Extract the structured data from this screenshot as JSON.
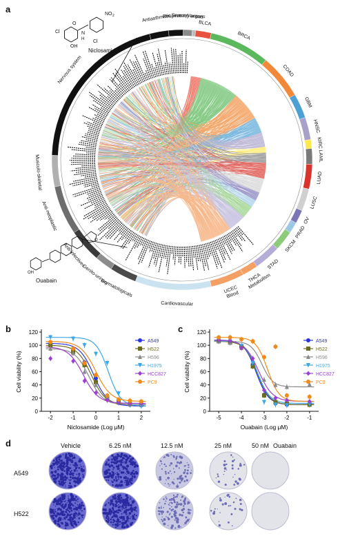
{
  "panels": {
    "a": "a",
    "b": "b",
    "c": "c",
    "d": "d"
  },
  "circos": {
    "drug_categories": [
      {
        "name": "Antiasthmatic",
        "color": "#111111",
        "start": 345.5,
        "end": 354
      },
      {
        "name": "Respiratory",
        "color": "#111111",
        "start": 354,
        "end": 360.5
      },
      {
        "name": "Sensory organs",
        "color": "#8a8a8a",
        "start": 360.5,
        "end": 364.5
      },
      {
        "name": "Various",
        "color": "#bdbdbd",
        "start": 364.5,
        "end": 366
      },
      {
        "name": "Nervous system",
        "color": "#111111",
        "start": 272,
        "end": 345.5
      },
      {
        "name": "Musculo-skeletal",
        "color": "#b0b0b0",
        "start": 258,
        "end": 272
      },
      {
        "name": "Anti-neoplastic",
        "color": "#6d6d6d",
        "start": 236,
        "end": 258
      },
      {
        "name": "Anti-infectives",
        "color": "#3a3a3a",
        "start": 221,
        "end": 236
      },
      {
        "name": "Genito-urinary",
        "color": "#8c8c8c",
        "start": 213,
        "end": 221
      },
      {
        "name": "Dermatologicals",
        "color": "#4a4a4a",
        "start": 201,
        "end": 213
      },
      {
        "name": "Cardiovascular",
        "color": "#cbe3f0",
        "start": 163,
        "end": 201
      },
      {
        "name": "Blood",
        "color": "#5aa0cf",
        "start": 156,
        "end": 163
      },
      {
        "name": "Metabolism",
        "color": "#9cc8e6",
        "start": 139,
        "end": 156
      }
    ],
    "cancer_types": [
      {
        "name": "BLCA",
        "color": "#e8533f",
        "start": 6,
        "end": 13
      },
      {
        "name": "BRCA",
        "color": "#5cb85c",
        "start": 13,
        "end": 40
      },
      {
        "name": "COAD",
        "color": "#f08a3a",
        "start": 40,
        "end": 60
      },
      {
        "name": "GBM",
        "color": "#4da0d4",
        "start": 60,
        "end": 71
      },
      {
        "name": "HNSC",
        "color": "#a9a1c9",
        "start": 71,
        "end": 81
      },
      {
        "name": "KIRC",
        "color": "#ffe94d",
        "start": 81,
        "end": 85
      },
      {
        "name": "LAML",
        "color": "#7a7a7a",
        "start": 85,
        "end": 92
      },
      {
        "name": "LUAD",
        "color": "#d9342b",
        "start": 92,
        "end": 103
      },
      {
        "name": "LUSC",
        "color": "#d0d0d0",
        "start": 103,
        "end": 113
      },
      {
        "name": "OV",
        "color": "#7b75b6",
        "start": 113,
        "end": 119
      },
      {
        "name": "PRAD",
        "color": "#9cc8e6",
        "start": 119,
        "end": 124
      },
      {
        "name": "SKCM",
        "color": "#8dca7a",
        "start": 124,
        "end": 133
      },
      {
        "name": "STAD",
        "color": "#b4aed6",
        "start": 133,
        "end": 145
      },
      {
        "name": "THCA",
        "color": "#f4a064",
        "start": 145,
        "end": 152
      },
      {
        "name": "UCEC",
        "color": "#f4a064",
        "start": 152,
        "end": 167
      }
    ],
    "drug_names": {
      "niclosamide": "Niclosamide",
      "ouabain": "Ouabain"
    },
    "structure_atoms": {
      "cl": "Cl",
      "oh": "OH",
      "no2": "NO",
      "no2_sub": "2",
      "nh": "N",
      "h": "H",
      "o": "O"
    }
  },
  "chart_data": [
    {
      "type": "line",
      "title": "",
      "xlabel": "Niclosamide (Log μM)",
      "ylabel": "Cell viability (%)",
      "xlim": [
        -2.4,
        2.4
      ],
      "ylim": [
        0,
        120
      ],
      "xticks": [
        -2,
        -1,
        0,
        1,
        2
      ],
      "yticks": [
        0,
        20,
        40,
        60,
        80,
        100,
        120
      ],
      "legend": "right",
      "x": [
        -2,
        -1,
        -0.5,
        0,
        0.5,
        1,
        1.5,
        2
      ],
      "series": [
        {
          "name": "A549",
          "color": "#2a35d9",
          "marker": "circle",
          "ic50": -0.1,
          "top": 103,
          "bottom": 8,
          "hill": 1.4,
          "values": [
            101,
            93,
            74,
            50,
            20,
            13,
            10,
            9
          ]
        },
        {
          "name": "H522",
          "color": "#6b6b1f",
          "marker": "square",
          "ic50": -0.2,
          "top": 100,
          "bottom": 10,
          "hill": 1.4,
          "values": [
            100,
            90,
            70,
            44,
            20,
            14,
            11,
            10
          ]
        },
        {
          "name": "H596",
          "color": "#8a8a8a",
          "marker": "triangle",
          "ic50": -0.3,
          "top": 95,
          "bottom": 10,
          "hill": 1.4,
          "values": [
            95,
            88,
            60,
            40,
            22,
            15,
            12,
            11
          ]
        },
        {
          "name": "H1975",
          "color": "#3ba7e6",
          "marker": "triangle-down",
          "ic50": 0.55,
          "top": 112,
          "bottom": 8,
          "hill": 1.6,
          "values": [
            112,
            110,
            100,
            87,
            73,
            27,
            10,
            8
          ]
        },
        {
          "name": "HCC827",
          "color": "#9c3fcf",
          "marker": "diamond",
          "ic50": -0.55,
          "top": 98,
          "bottom": 12,
          "hill": 1.3,
          "values": [
            80,
            76,
            46,
            28,
            17,
            14,
            12,
            12
          ]
        },
        {
          "name": "PC9",
          "color": "#f08a1a",
          "marker": "circle",
          "ic50": 0.0,
          "top": 106,
          "bottom": 15,
          "hill": 1.3,
          "values": [
            105,
            95,
            73,
            55,
            24,
            18,
            16,
            15
          ]
        }
      ]
    },
    {
      "type": "line",
      "title": "",
      "xlabel": "Ouabain (Log μM)",
      "ylabel": "Cell viability (%)",
      "xlim": [
        -5.4,
        -0.6
      ],
      "ylim": [
        0,
        120
      ],
      "xticks": [
        -5,
        -4,
        -3,
        -2,
        -1
      ],
      "yticks": [
        0,
        20,
        40,
        60,
        80,
        100,
        120
      ],
      "legend": "right",
      "x": [
        -5,
        -4.5,
        -4,
        -3.5,
        -3,
        -2.5,
        -2,
        -1
      ],
      "series": [
        {
          "name": "A549",
          "color": "#2a35d9",
          "marker": "circle",
          "ic50": -3.35,
          "top": 108,
          "bottom": 10,
          "hill": 1.6,
          "values": [
            108,
            106,
            99,
            71,
            25,
            12,
            10,
            10
          ]
        },
        {
          "name": "H522",
          "color": "#6b6b1f",
          "marker": "square",
          "ic50": -3.3,
          "top": 106,
          "bottom": 10,
          "hill": 1.6,
          "values": [
            106,
            104,
            98,
            68,
            24,
            14,
            12,
            10
          ]
        },
        {
          "name": "H596",
          "color": "#8a8a8a",
          "marker": "triangle",
          "ic50": -3.1,
          "top": 106,
          "bottom": 37,
          "hill": 1.8,
          "values": [
            106,
            104,
            96,
            75,
            48,
            40,
            37,
            41
          ]
        },
        {
          "name": "H1975",
          "color": "#3ba7e6",
          "marker": "triangle-down",
          "ic50": -3.3,
          "top": 107,
          "bottom": 12,
          "hill": 1.6,
          "values": [
            107,
            106,
            99,
            73,
            14,
            10,
            9,
            11
          ]
        },
        {
          "name": "HCC827",
          "color": "#9c3fcf",
          "marker": "diamond",
          "ic50": -3.25,
          "top": 108,
          "bottom": 15,
          "hill": 1.4,
          "values": [
            108,
            107,
            96,
            80,
            32,
            20,
            17,
            15
          ]
        },
        {
          "name": "PC9",
          "color": "#f08a1a",
          "marker": "circle",
          "ic50": -2.85,
          "top": 112,
          "bottom": 15,
          "hill": 1.7,
          "values": [
            112,
            112,
            109,
            106,
            82,
            98,
            24,
            22
          ]
        }
      ]
    }
  ],
  "colony": {
    "columns": [
      "Vehicle",
      "6.25 nM",
      "12.5 nM",
      "25 nM",
      "50 nM",
      "Ouabain"
    ],
    "rows": [
      "A549",
      "H522"
    ],
    "stain_density": [
      [
        1.0,
        0.8,
        0.28,
        0.12,
        0.0
      ],
      [
        1.0,
        0.95,
        0.45,
        0.12,
        0.0
      ]
    ]
  }
}
